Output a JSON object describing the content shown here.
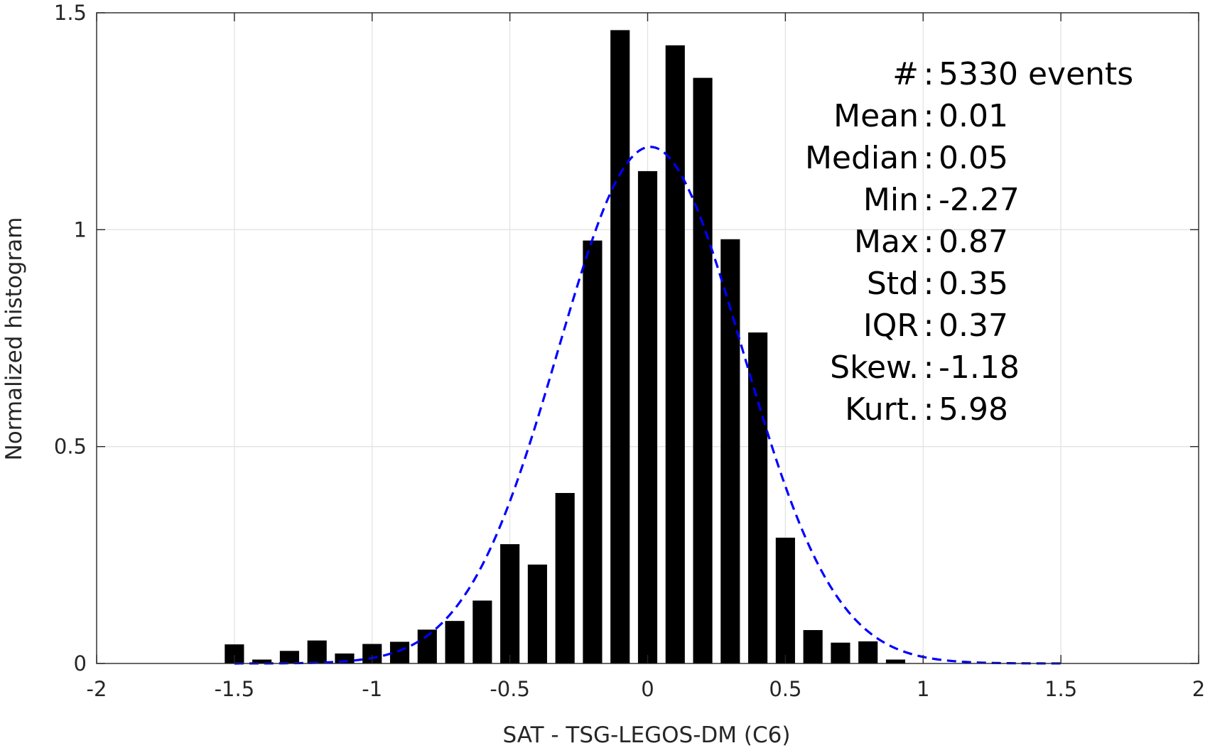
{
  "chart_data": {
    "type": "bar",
    "xlabel": "SAT - TSG-LEGOS-DM (C6)",
    "ylabel": "Normalized histogram",
    "xlim": [
      -2,
      2
    ],
    "ylim": [
      0,
      1.5
    ],
    "xticks": [
      -2,
      -1.5,
      -1,
      -0.5,
      0,
      0.5,
      1,
      1.5,
      2
    ],
    "xtick_labels": [
      "-2",
      "-1.5",
      "-1",
      "-0.5",
      "0",
      "0.5",
      "1",
      "1.5",
      "2"
    ],
    "yticks": [
      0,
      0.5,
      1,
      1.5
    ],
    "ytick_labels": [
      "0",
      "0.5",
      "1",
      "1.5"
    ],
    "grid": true,
    "bar_width": 0.07,
    "bar_color": "#000000",
    "x": [
      -1.5,
      -1.4,
      -1.3,
      -1.2,
      -1.1,
      -1.0,
      -0.9,
      -0.8,
      -0.7,
      -0.6,
      -0.5,
      -0.4,
      -0.3,
      -0.2,
      -0.1,
      0.0,
      0.1,
      0.2,
      0.3,
      0.4,
      0.5,
      0.6,
      0.7,
      0.8,
      0.9
    ],
    "values": [
      0.044,
      0.009,
      0.029,
      0.053,
      0.023,
      0.045,
      0.05,
      0.078,
      0.098,
      0.145,
      0.275,
      0.228,
      0.393,
      0.975,
      1.46,
      1.135,
      1.425,
      1.35,
      0.978,
      0.763,
      0.29,
      0.077,
      0.048,
      0.051,
      0.009
    ],
    "fit_curve": {
      "kind": "normal",
      "mean": 0.01,
      "std": 0.335,
      "x_range": [
        -1.5,
        1.5
      ],
      "color": "#0000ff",
      "style": "dashed"
    },
    "stats_box": {
      "position": "top-right",
      "lines": [
        {
          "label": "#",
          "sep": ":",
          "value": "5330 events"
        },
        {
          "label": "Mean",
          "sep": ":",
          "value": "0.01"
        },
        {
          "label": "Median",
          "sep": ":",
          "value": "0.05"
        },
        {
          "label": "Min",
          "sep": ":",
          "value": "-2.27"
        },
        {
          "label": "Max",
          "sep": ":",
          "value": "0.87"
        },
        {
          "label": "Std",
          "sep": ":",
          "value": "0.35"
        },
        {
          "label": "IQR",
          "sep": ":",
          "value": "0.37"
        },
        {
          "label": "Skew.",
          "sep": ":",
          "value": "-1.18"
        },
        {
          "label": "Kurt.",
          "sep": ":",
          "value": "5.98"
        }
      ]
    }
  }
}
